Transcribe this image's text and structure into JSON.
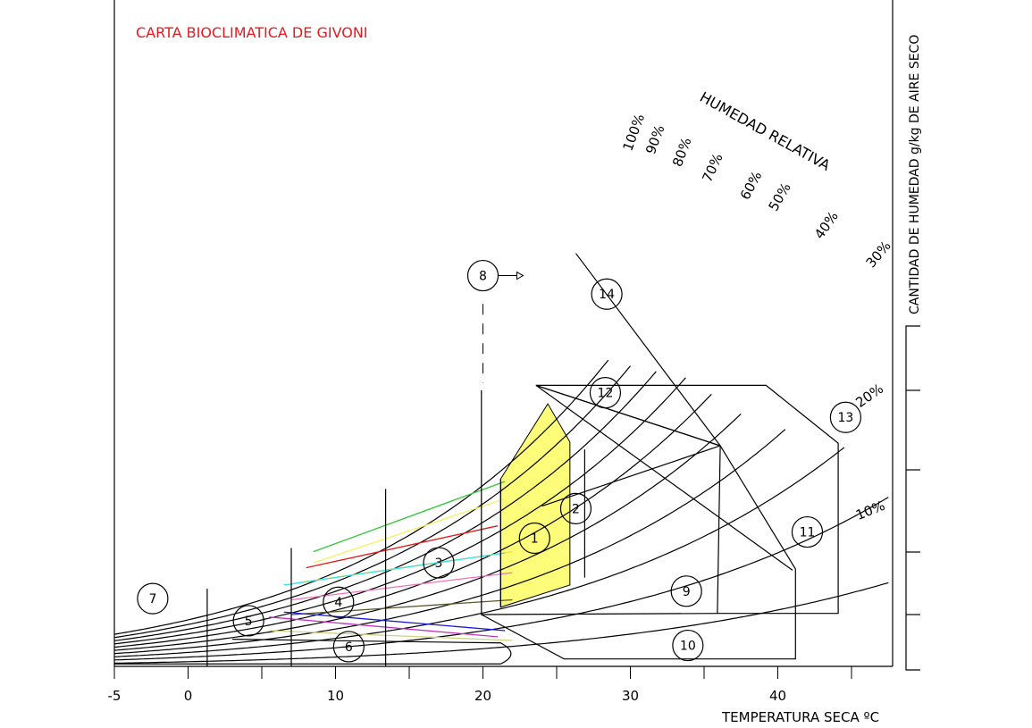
{
  "chart_data": {
    "type": "line",
    "title": "CARTA BIOCLIMATICA DE GIVONI",
    "title_color": "#e8191e",
    "xlabel": "TEMPERATURA SECA ºC",
    "ylabel": "CANTIDAD DE HUMEDAD g/kg DE AIRE SECO",
    "rh_title": "HUMEDAD RELATIVA",
    "xlim": [
      -5,
      47.5
    ],
    "x_ticks": [
      {
        "value": -5,
        "label": "-5"
      },
      {
        "value": 0,
        "label": "0"
      },
      {
        "value": 10,
        "label": "10"
      },
      {
        "value": 20,
        "label": "20"
      },
      {
        "value": 30,
        "label": "30"
      },
      {
        "value": 40,
        "label": "40"
      }
    ],
    "rh_curves": [
      {
        "label": "100%",
        "rh": 100
      },
      {
        "label": "90%",
        "rh": 90
      },
      {
        "label": "80%",
        "rh": 80
      },
      {
        "label": "70%",
        "rh": 70
      },
      {
        "label": "60%",
        "rh": 60
      },
      {
        "label": "50%",
        "rh": 50
      },
      {
        "label": "40%",
        "rh": 40
      },
      {
        "label": "30%",
        "rh": 30
      },
      {
        "label": "20%",
        "rh": 20
      },
      {
        "label": "10%",
        "rh": 10
      }
    ],
    "comfort_zone_color": "#fdfd7a",
    "zones": [
      {
        "label": "1",
        "t": 23.5,
        "w": 10.4
      },
      {
        "label": "2",
        "t": 26.3,
        "w": 12.8
      },
      {
        "label": "3",
        "t": 17.0,
        "w": 8.4
      },
      {
        "label": "4",
        "t": 10.2,
        "w": 5.2
      },
      {
        "label": "5",
        "t": 4.1,
        "w": 3.7
      },
      {
        "label": "6",
        "t": 10.9,
        "w": 1.6
      },
      {
        "label": "7",
        "t": -2.4,
        "w": 5.5
      },
      {
        "label": "8",
        "t": 20.0,
        "w": 31.7
      },
      {
        "label": "9",
        "t": 33.8,
        "w": 6.1
      },
      {
        "label": "10",
        "t": 33.9,
        "w": 1.7
      },
      {
        "label": "11",
        "t": 42.0,
        "w": 10.9
      },
      {
        "label": "12",
        "t": 28.3,
        "w": 22.2
      },
      {
        "label": "13",
        "t": 44.6,
        "w": 20.2
      },
      {
        "label": "14",
        "t": 28.4,
        "w": 30.2
      }
    ],
    "series": [
      {
        "color": "#35c43a",
        "x": [
          8.5,
          21.5
        ],
        "y": [
          9.3,
          15.0
        ]
      },
      {
        "color": "#f3f35a",
        "x": [
          8.5,
          21.5
        ],
        "y": [
          8.4,
          13.6
        ]
      },
      {
        "color": "#e01a1a",
        "x": [
          8.0,
          21.0
        ],
        "y": [
          8.0,
          11.4
        ]
      },
      {
        "color": "#f0e040",
        "x": [
          7.5,
          22.0
        ],
        "y": [
          6.8,
          9.3
        ]
      },
      {
        "color": "#34e2ea",
        "x": [
          6.5,
          21.5
        ],
        "y": [
          6.6,
          9.2
        ]
      },
      {
        "color": "#f070c0",
        "x": [
          7.0,
          22.0
        ],
        "y": [
          5.4,
          7.6
        ]
      },
      {
        "color": "#5a5a2a",
        "x": [
          7.0,
          22.0
        ],
        "y": [
          4.2,
          5.4
        ]
      },
      {
        "color": "#1a1ad0",
        "x": [
          6.5,
          21.5
        ],
        "y": [
          4.4,
          2.9
        ]
      },
      {
        "color": "#c030c0",
        "x": [
          5.5,
          21.0
        ],
        "y": [
          4.0,
          2.4
        ]
      },
      {
        "color": "#d0d080",
        "x": [
          5.5,
          22.0
        ],
        "y": [
          2.9,
          2.1
        ]
      }
    ]
  }
}
